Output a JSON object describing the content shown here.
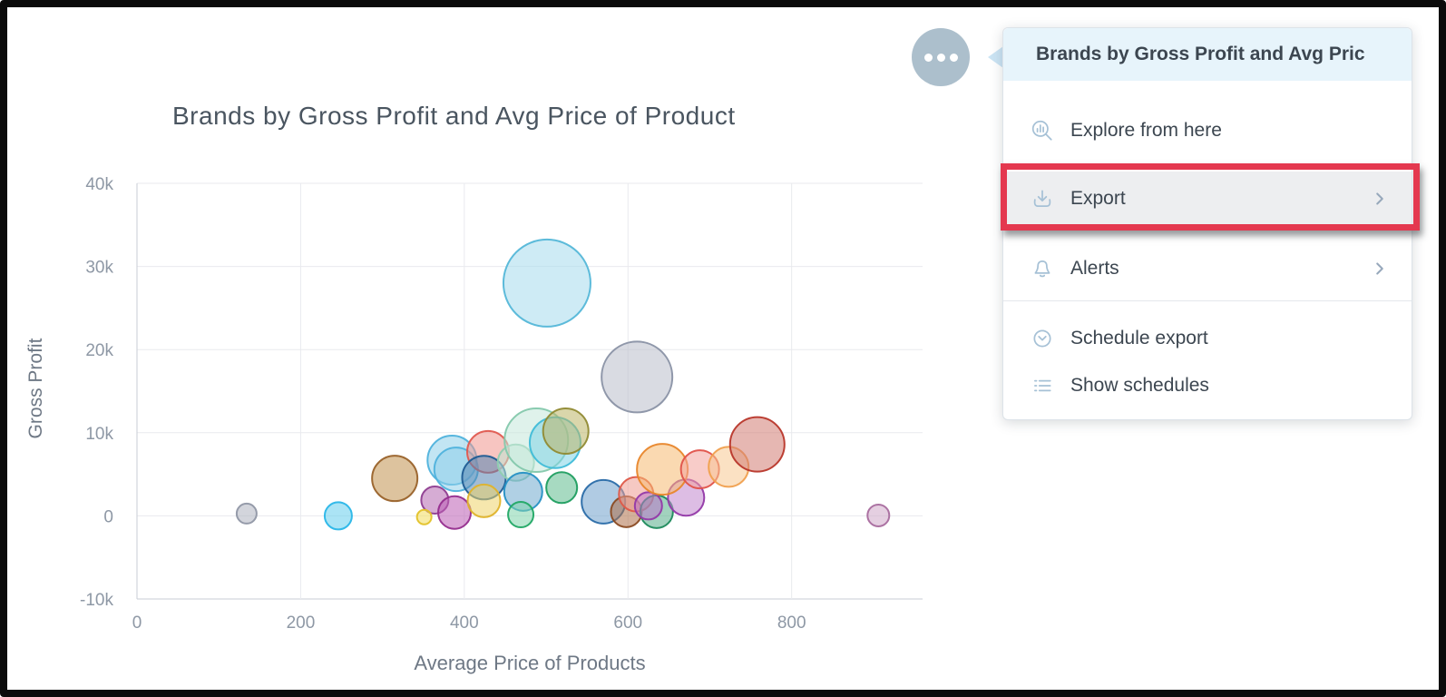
{
  "chart_data": {
    "type": "scatter",
    "title": "Brands by Gross Profit and Avg Price of Product",
    "xlabel": "Average Price of Products",
    "ylabel": "Gross Profit",
    "x_range": [
      0,
      960
    ],
    "y_range": [
      -10000,
      40000
    ],
    "grid": true,
    "legend": "none",
    "x_ticks": [
      {
        "v": 0,
        "label": "0"
      },
      {
        "v": 200,
        "label": "200"
      },
      {
        "v": 400,
        "label": "400"
      },
      {
        "v": 600,
        "label": "600"
      },
      {
        "v": 800,
        "label": "800"
      }
    ],
    "y_ticks": [
      {
        "v": 40000,
        "label": "40k"
      },
      {
        "v": 30000,
        "label": "30k"
      },
      {
        "v": 20000,
        "label": "20k"
      },
      {
        "v": 10000,
        "label": "10k"
      },
      {
        "v": 0,
        "label": "0"
      },
      {
        "v": -10000,
        "label": "-10k"
      }
    ],
    "colors": {
      "grid": "#e9eaee",
      "axis": "#c9ced6",
      "tick": "#8e98a5",
      "title": "#4a5560",
      "axis_label": "#6e7885",
      "fill_opacity": 0.55
    },
    "points": [
      {
        "x": 134,
        "y": 270,
        "r": 11,
        "fill": "#aeb3bf",
        "stroke": "#9097a5"
      },
      {
        "x": 246,
        "y": 0,
        "r": 15,
        "fill": "#66cded",
        "stroke": "#29b6e8"
      },
      {
        "x": 315,
        "y": 4500,
        "r": 25,
        "fill": "#c1914f",
        "stroke": "#99622a"
      },
      {
        "x": 364,
        "y": 1900,
        "r": 15,
        "fill": "#b568b0",
        "stroke": "#8e3d90"
      },
      {
        "x": 388,
        "y": 400,
        "r": 18,
        "fill": "#bc5cb4",
        "stroke": "#952d8e"
      },
      {
        "x": 351,
        "y": -150,
        "r": 8,
        "fill": "#f2dc5c",
        "stroke": "#e3c229"
      },
      {
        "x": 385,
        "y": 6700,
        "r": 27,
        "fill": "#8fd0ea",
        "stroke": "#4fb2dc"
      },
      {
        "x": 390,
        "y": 5600,
        "r": 24,
        "fill": "#8fd0ea",
        "stroke": "#4fb2dc"
      },
      {
        "x": 429,
        "y": 7700,
        "r": 23,
        "fill": "#f0968e",
        "stroke": "#e05a50"
      },
      {
        "x": 424,
        "y": 4600,
        "r": 24,
        "fill": "#5585b2",
        "stroke": "#1f5c94"
      },
      {
        "x": 424,
        "y": 1800,
        "r": 18,
        "fill": "#efd369",
        "stroke": "#dfb32b"
      },
      {
        "x": 463,
        "y": 6400,
        "r": 20,
        "fill": "#c0e5d3",
        "stroke": "#8fcdb0"
      },
      {
        "x": 472,
        "y": 2900,
        "r": 21,
        "fill": "#6fa9ce",
        "stroke": "#2590c4"
      },
      {
        "x": 469,
        "y": 150,
        "r": 14,
        "fill": "#7fd4ac",
        "stroke": "#21a865"
      },
      {
        "x": 488,
        "y": 9100,
        "r": 35,
        "fill": "#c5e8db",
        "stroke": "#84c8ac"
      },
      {
        "x": 511,
        "y": 8800,
        "r": 28,
        "fill": "#7fd4e6",
        "stroke": "#3fbcd8"
      },
      {
        "x": 524,
        "y": 10200,
        "r": 25,
        "fill": "#bbb566",
        "stroke": "#908a33"
      },
      {
        "x": 501,
        "y": 28000,
        "r": 48,
        "fill": "#a6daec",
        "stroke": "#54b7d8"
      },
      {
        "x": 611,
        "y": 16700,
        "r": 39,
        "fill": "#b9bdca",
        "stroke": "#8a92a5"
      },
      {
        "x": 519,
        "y": 3400,
        "r": 17,
        "fill": "#5fbb8e",
        "stroke": "#1f9e60"
      },
      {
        "x": 570,
        "y": 1700,
        "r": 24,
        "fill": "#6fa0cc",
        "stroke": "#2a6ca8"
      },
      {
        "x": 598,
        "y": 500,
        "r": 17,
        "fill": "#af7048",
        "stroke": "#8a4a22"
      },
      {
        "x": 610,
        "y": 2600,
        "r": 19,
        "fill": "#ef9c92",
        "stroke": "#de5848"
      },
      {
        "x": 635,
        "y": 500,
        "r": 18,
        "fill": "#55ad88",
        "stroke": "#1d8a5c"
      },
      {
        "x": 625,
        "y": 1200,
        "r": 15,
        "fill": "#bc77cb",
        "stroke": "#9339a8"
      },
      {
        "x": 671,
        "y": 2200,
        "r": 20,
        "fill": "#c186ce",
        "stroke": "#9339a8"
      },
      {
        "x": 642,
        "y": 5600,
        "r": 28,
        "fill": "#f5b971",
        "stroke": "#e8862b"
      },
      {
        "x": 688,
        "y": 5600,
        "r": 21,
        "fill": "#f2a39c",
        "stroke": "#e0524a"
      },
      {
        "x": 723,
        "y": 5900,
        "r": 22,
        "fill": "#f7c992",
        "stroke": "#f0a04f"
      },
      {
        "x": 758,
        "y": 8600,
        "r": 30,
        "fill": "#d27c72",
        "stroke": "#b8362a"
      },
      {
        "x": 906,
        "y": 50,
        "r": 12,
        "fill": "#d0a8c8",
        "stroke": "#a86b9e"
      }
    ]
  },
  "ellipsis_button": {
    "icon": "ellipsis-icon",
    "dot_color": "#ffffff",
    "bg_color": "#acbfcc"
  },
  "menu": {
    "title": "Brands by Gross Profit and Avg Pric",
    "items": [
      {
        "id": "explore",
        "label": "Explore from here",
        "icon": "explore-icon",
        "chevron": false,
        "highlighted": false
      },
      {
        "id": "export",
        "label": "Export",
        "icon": "download-icon",
        "chevron": true,
        "highlighted": true,
        "annotated": true
      },
      {
        "id": "alerts",
        "label": "Alerts",
        "icon": "bell-icon",
        "chevron": true,
        "highlighted": false
      },
      {
        "id": "schedule-export",
        "label": "Schedule export",
        "icon": "clock-icon",
        "chevron": false,
        "highlighted": false
      },
      {
        "id": "show-schedules",
        "label": "Show schedules",
        "icon": "list-icon",
        "chevron": false,
        "highlighted": false
      }
    ],
    "colors": {
      "header_bg": "#e7f4fb",
      "text": "#3c4650",
      "icon": "#a6c1d6",
      "highlight_bg": "#edeef0",
      "annotation": "#e4384f"
    }
  }
}
